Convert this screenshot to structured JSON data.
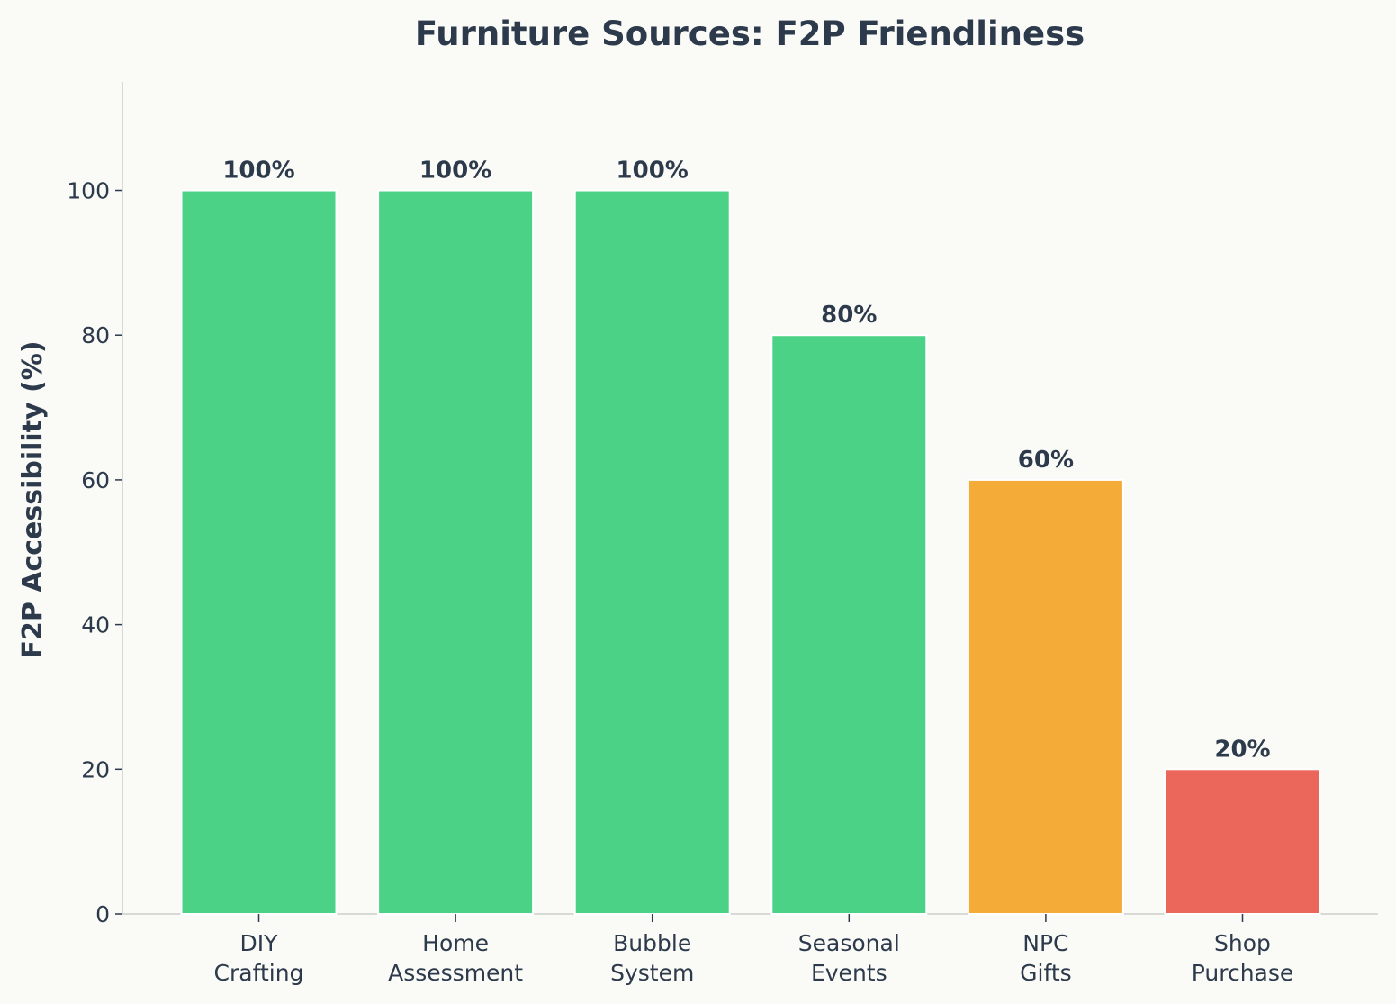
{
  "chart_data": {
    "type": "bar",
    "title": "Furniture Sources: F2P Friendliness",
    "xlabel": "",
    "ylabel": "F2P Accessibility (%)",
    "ylim": [
      0,
      115
    ],
    "yticks": [
      0,
      20,
      40,
      60,
      80,
      100
    ],
    "grid": false,
    "legend": "none",
    "categories": [
      [
        "DIY",
        "Crafting"
      ],
      [
        "Home",
        "Assessment"
      ],
      [
        "Bubble",
        "System"
      ],
      [
        "Seasonal",
        "Events"
      ],
      [
        "NPC",
        "Gifts"
      ],
      [
        "Shop",
        "Purchase"
      ]
    ],
    "values": [
      100,
      100,
      100,
      80,
      60,
      20
    ],
    "value_labels": [
      "100%",
      "100%",
      "100%",
      "80%",
      "60%",
      "20%"
    ],
    "bar_colors": [
      "#4cd287",
      "#4cd287",
      "#4cd287",
      "#4cd287",
      "#f4ab37",
      "#eb665b"
    ],
    "text_color": "#2c3a4b",
    "background_color": "#fafaf7"
  }
}
